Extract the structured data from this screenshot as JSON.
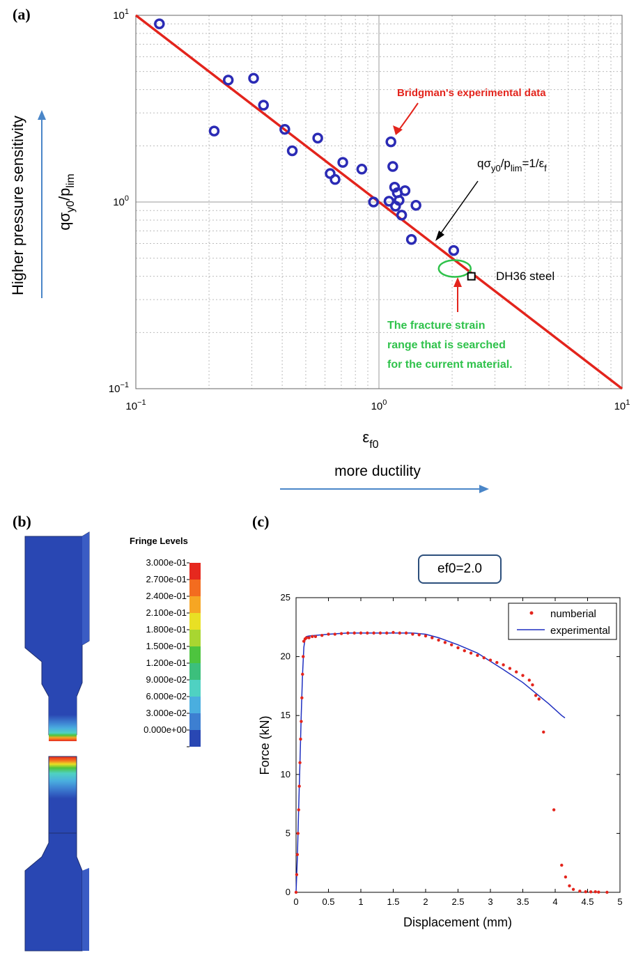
{
  "labels": {
    "a": "(a)",
    "b": "(b)",
    "c": "(c)"
  },
  "chart_a": {
    "type": "scatter",
    "scale": "log-log",
    "xlim": [
      0.1,
      10
    ],
    "ylim": [
      0.1,
      10
    ],
    "x_ticks": [
      {
        "v": 0.1,
        "base": "10",
        "exp": "−1"
      },
      {
        "v": 1,
        "base": "10",
        "exp": "0"
      },
      {
        "v": 10,
        "base": "10",
        "exp": "1"
      }
    ],
    "y_ticks": [
      {
        "v": 0.1,
        "base": "10",
        "exp": "−1"
      },
      {
        "v": 1,
        "base": "10",
        "exp": "0"
      },
      {
        "v": 10,
        "base": "10",
        "exp": "1"
      }
    ],
    "xlabel_main": "ε",
    "xlabel_sub": "f0",
    "xcaption": "more ductility",
    "ylabel_parts": [
      "qσ",
      "y0",
      "/p",
      "lim"
    ],
    "ycaption": "Higher pressure sensitivity",
    "fit_line": "qσy0/plim = 1/εf",
    "points": [
      {
        "x": 0.125,
        "y": 9.0
      },
      {
        "x": 0.21,
        "y": 2.4
      },
      {
        "x": 0.24,
        "y": 4.5
      },
      {
        "x": 0.305,
        "y": 4.6
      },
      {
        "x": 0.335,
        "y": 3.3
      },
      {
        "x": 0.41,
        "y": 2.45
      },
      {
        "x": 0.44,
        "y": 1.88
      },
      {
        "x": 0.56,
        "y": 2.2
      },
      {
        "x": 0.63,
        "y": 1.42
      },
      {
        "x": 0.66,
        "y": 1.32
      },
      {
        "x": 0.71,
        "y": 1.63
      },
      {
        "x": 0.85,
        "y": 1.5
      },
      {
        "x": 0.95,
        "y": 1.0
      },
      {
        "x": 1.1,
        "y": 1.01
      },
      {
        "x": 1.12,
        "y": 2.1
      },
      {
        "x": 1.14,
        "y": 1.55
      },
      {
        "x": 1.16,
        "y": 1.2
      },
      {
        "x": 1.17,
        "y": 0.95
      },
      {
        "x": 1.19,
        "y": 1.12
      },
      {
        "x": 1.21,
        "y": 1.02
      },
      {
        "x": 1.24,
        "y": 0.85
      },
      {
        "x": 1.28,
        "y": 1.15
      },
      {
        "x": 1.36,
        "y": 0.63
      },
      {
        "x": 1.42,
        "y": 0.96
      },
      {
        "x": 2.03,
        "y": 0.55
      }
    ],
    "dh36_point": {
      "x": 2.4,
      "y": 0.4
    },
    "ellipse_center": {
      "x": 2.05,
      "y": 0.44
    },
    "annotations": {
      "bridgman": "Bridgman's experimental data",
      "formula_parts": [
        "qσ",
        "y0",
        "/p",
        "lim",
        "=1/ε",
        "f"
      ],
      "dh36": "DH36 steel",
      "range_lines": [
        "The fracture strain",
        "range that is searched",
        "for the current material."
      ]
    },
    "colors": {
      "line": "#e3241c",
      "marker": "#2b2bb5",
      "green": "#2fc24b",
      "arrow": "#4a86c8"
    }
  },
  "fringe": {
    "title": "Fringe Levels",
    "levels": [
      "3.000e-01",
      "2.700e-01",
      "2.400e-01",
      "2.100e-01",
      "1.800e-01",
      "1.500e-01",
      "1.200e-01",
      "9.000e-02",
      "6.000e-02",
      "3.000e-02",
      "0.000e+00"
    ],
    "colors": [
      "#e6281e",
      "#f36c1f",
      "#f6a623",
      "#e9e024",
      "#a8d631",
      "#4dc43e",
      "#3cbf7c",
      "#4fd1c2",
      "#4aaedf",
      "#3d7fd1",
      "#2947b3"
    ]
  },
  "chart_data": {
    "type": "scatter",
    "param_label": "ef0=2.0",
    "xlabel": "Displacement (mm)",
    "ylabel": "Force (kN)",
    "xlim": [
      0,
      5
    ],
    "ylim": [
      0,
      25
    ],
    "x_ticks": [
      "0",
      "0.5",
      "1",
      "1.5",
      "2",
      "2.5",
      "3",
      "3.5",
      "4",
      "4.5",
      "5"
    ],
    "y_ticks": [
      "0",
      "5",
      "10",
      "15",
      "20",
      "25"
    ],
    "legend": {
      "numerical": "numberial",
      "experimental": "experimental"
    },
    "series": [
      {
        "name": "numberial",
        "x": [
          0,
          0.01,
          0.02,
          0.03,
          0.04,
          0.05,
          0.06,
          0.07,
          0.08,
          0.09,
          0.1,
          0.11,
          0.12,
          0.14,
          0.16,
          0.2,
          0.25,
          0.3,
          0.4,
          0.5,
          0.6,
          0.7,
          0.8,
          0.9,
          1.0,
          1.1,
          1.2,
          1.3,
          1.4,
          1.5,
          1.6,
          1.7,
          1.8,
          1.9,
          2.0,
          2.1,
          2.2,
          2.3,
          2.4,
          2.5,
          2.6,
          2.7,
          2.8,
          2.9,
          3.0,
          3.1,
          3.2,
          3.3,
          3.4,
          3.5,
          3.6,
          3.65,
          3.7,
          3.75,
          3.82,
          3.98,
          4.1,
          4.16,
          4.22,
          4.28,
          4.38,
          4.47,
          4.55,
          4.62,
          4.67,
          4.8
        ],
        "y": [
          0,
          1.5,
          3.2,
          5.0,
          7.0,
          9.0,
          11.0,
          13.0,
          14.5,
          16.5,
          18.5,
          20.0,
          21.3,
          21.5,
          21.6,
          21.6,
          21.7,
          21.7,
          21.8,
          21.9,
          21.9,
          21.95,
          22.0,
          22.0,
          22.0,
          22.0,
          22.0,
          22.0,
          22.0,
          22.05,
          22.0,
          22.0,
          21.9,
          21.85,
          21.75,
          21.6,
          21.4,
          21.2,
          21.0,
          20.75,
          20.5,
          20.3,
          20.1,
          19.9,
          19.7,
          19.5,
          19.3,
          19.0,
          18.7,
          18.4,
          18.0,
          17.6,
          16.7,
          16.4,
          13.6,
          7.0,
          2.3,
          1.3,
          0.55,
          0.25,
          0.1,
          0.05,
          0.04,
          0.05,
          0.02,
          0.0
        ]
      },
      {
        "name": "experimental",
        "x": [
          0,
          0.02,
          0.04,
          0.06,
          0.08,
          0.1,
          0.12,
          0.14,
          0.16,
          0.2,
          0.3,
          0.5,
          0.8,
          1.0,
          1.2,
          1.5,
          1.8,
          2.0,
          2.2,
          2.5,
          2.8,
          3.0,
          3.2,
          3.5,
          3.7,
          3.9,
          4.1,
          4.15
        ],
        "y": [
          0,
          3,
          7,
          11,
          15,
          18.5,
          20.8,
          21.5,
          21.7,
          21.75,
          21.8,
          21.9,
          22.0,
          22.0,
          22.0,
          22.0,
          22.0,
          21.9,
          21.6,
          21.0,
          20.3,
          19.6,
          18.9,
          17.8,
          16.9,
          16.0,
          15.0,
          14.8
        ]
      }
    ]
  }
}
